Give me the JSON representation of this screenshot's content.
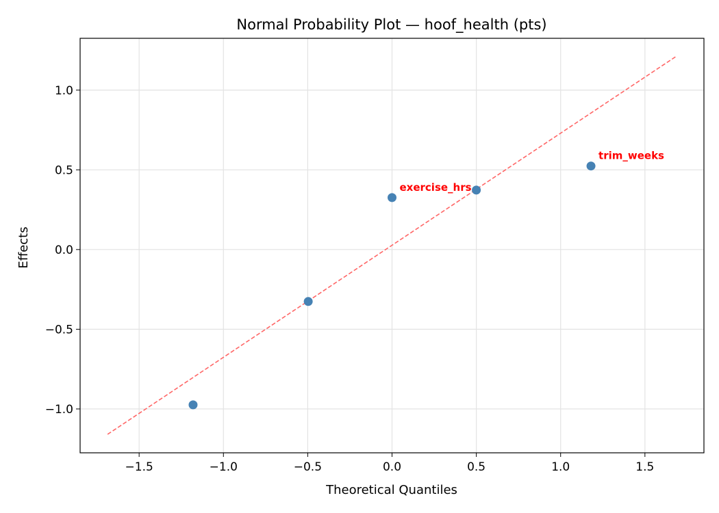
{
  "chart_data": {
    "type": "scatter",
    "title": "Normal Probability Plot — hoof_health (pts)",
    "xlabel": "Theoretical Quantiles",
    "ylabel": "Effects",
    "xlim": [
      -1.85,
      1.85
    ],
    "ylim": [
      -1.275,
      1.325
    ],
    "xticks": [
      -1.5,
      -1.0,
      -0.5,
      0.0,
      0.5,
      1.0,
      1.5
    ],
    "xtick_labels": [
      "−1.5",
      "−1.0",
      "−0.5",
      "0.0",
      "0.5",
      "1.0",
      "1.5"
    ],
    "yticks": [
      -1.0,
      -0.5,
      0.0,
      0.5,
      1.0
    ],
    "ytick_labels": [
      "−1.0",
      "−0.5",
      "0.0",
      "0.5",
      "1.0"
    ],
    "grid": true,
    "points": [
      {
        "x": -1.18,
        "y": -0.974,
        "label": ""
      },
      {
        "x": -0.497,
        "y": -0.326,
        "label": ""
      },
      {
        "x": 0.0,
        "y": 0.326,
        "label": "exercise_hrs"
      },
      {
        "x": 0.5,
        "y": 0.373,
        "label": ""
      },
      {
        "x": 1.18,
        "y": 0.524,
        "label": "trim_weeks"
      }
    ],
    "reference_line": {
      "x": [
        -1.687,
        1.683
      ],
      "y": [
        -1.159,
        1.21
      ],
      "style": "dashed"
    },
    "colors": {
      "points": "#4682b4",
      "line": "#ff6666",
      "labels": "#ff0000"
    }
  }
}
